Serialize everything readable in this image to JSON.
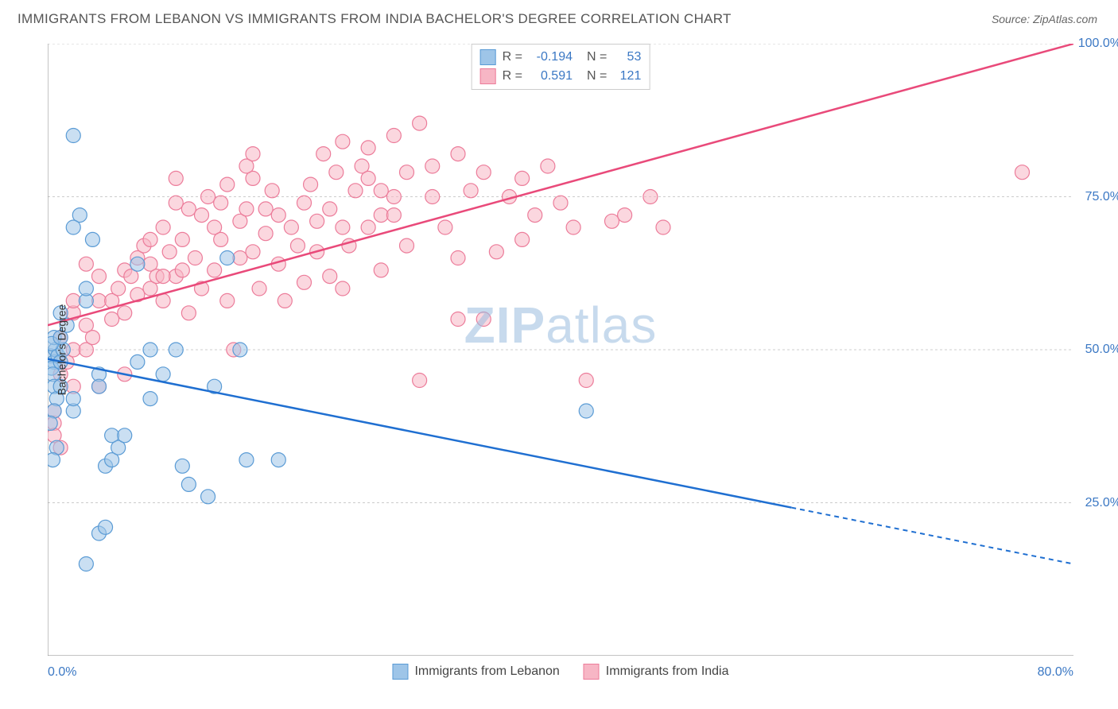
{
  "title": "IMMIGRANTS FROM LEBANON VS IMMIGRANTS FROM INDIA BACHELOR'S DEGREE CORRELATION CHART",
  "source": "Source: ZipAtlas.com",
  "ylabel": "Bachelor's Degree",
  "watermark_bold": "ZIP",
  "watermark_rest": "atlas",
  "chart": {
    "type": "scatter",
    "xlim": [
      0,
      80
    ],
    "ylim": [
      0,
      100
    ],
    "xtick_labels": {
      "min": "0.0%",
      "max": "80.0%"
    },
    "ytick_labels": [
      "25.0%",
      "50.0%",
      "75.0%",
      "100.0%"
    ],
    "ytick_values": [
      25,
      50,
      75,
      100
    ],
    "xtick_minor": [
      0,
      10,
      20,
      30,
      40,
      50,
      60,
      70,
      80
    ],
    "grid_color": "#cccccc",
    "axis_color": "#888888",
    "tick_color": "#888888",
    "background": "#ffffff",
    "marker_radius": 9,
    "series": [
      {
        "name": "Immigrants from Lebanon",
        "color_fill": "#9ec5e8",
        "color_stroke": "#5a9bd5",
        "fill_opacity": 0.55,
        "r": -0.194,
        "n": 53,
        "regression": {
          "x0": 0,
          "y0": 48.5,
          "x1": 80,
          "y1": 15,
          "solid_until_x": 58
        },
        "line_color": "#1f6fd1",
        "points": [
          [
            0.2,
            49
          ],
          [
            0.5,
            48
          ],
          [
            0.6,
            50
          ],
          [
            0.3,
            47
          ],
          [
            0.8,
            49
          ],
          [
            0.5,
            52
          ],
          [
            1,
            48
          ],
          [
            1.2,
            50
          ],
          [
            0.4,
            46
          ],
          [
            0.3,
            51
          ],
          [
            0.5,
            44
          ],
          [
            0.7,
            42
          ],
          [
            1,
            56
          ],
          [
            2,
            85
          ],
          [
            2.5,
            72
          ],
          [
            2,
            70
          ],
          [
            3,
            58
          ],
          [
            3,
            60
          ],
          [
            3.5,
            68
          ],
          [
            4,
            46
          ],
          [
            4,
            44
          ],
          [
            4.5,
            31
          ],
          [
            5,
            36
          ],
          [
            5,
            32
          ],
          [
            5.5,
            34
          ],
          [
            3,
            15
          ],
          [
            4,
            20
          ],
          [
            4.5,
            21
          ],
          [
            6,
            36
          ],
          [
            7,
            48
          ],
          [
            7,
            64
          ],
          [
            8,
            50
          ],
          [
            8,
            42
          ],
          [
            9,
            46
          ],
          [
            10.5,
            31
          ],
          [
            10,
            50
          ],
          [
            11,
            28
          ],
          [
            12.5,
            26
          ],
          [
            13,
            44
          ],
          [
            14,
            65
          ],
          [
            15,
            50
          ],
          [
            15.5,
            32
          ],
          [
            18,
            32
          ],
          [
            2,
            40
          ],
          [
            2,
            42
          ],
          [
            1,
            52
          ],
          [
            1.5,
            54
          ],
          [
            42,
            40
          ],
          [
            1,
            44
          ],
          [
            0.5,
            40
          ],
          [
            0.2,
            38
          ],
          [
            0.7,
            34
          ],
          [
            0.4,
            32
          ]
        ]
      },
      {
        "name": "Immigrants from India",
        "color_fill": "#f7b6c5",
        "color_stroke": "#ec7c9a",
        "fill_opacity": 0.55,
        "r": 0.591,
        "n": 121,
        "regression": {
          "x0": 0,
          "y0": 54,
          "x1": 80,
          "y1": 100,
          "solid_until_x": 80
        },
        "line_color": "#e94a7a",
        "points": [
          [
            0.5,
            38
          ],
          [
            0.5,
            40
          ],
          [
            0.5,
            36
          ],
          [
            1,
            34
          ],
          [
            1.5,
            48
          ],
          [
            2,
            50
          ],
          [
            2,
            56
          ],
          [
            3,
            54
          ],
          [
            3,
            50
          ],
          [
            3.5,
            52
          ],
          [
            4,
            58
          ],
          [
            4,
            62
          ],
          [
            5,
            55
          ],
          [
            5,
            58
          ],
          [
            5.5,
            60
          ],
          [
            6,
            63
          ],
          [
            6,
            56
          ],
          [
            6.5,
            62
          ],
          [
            7,
            65
          ],
          [
            7,
            59
          ],
          [
            7.5,
            67
          ],
          [
            8,
            60
          ],
          [
            8,
            64
          ],
          [
            8.5,
            62
          ],
          [
            9,
            58
          ],
          [
            9,
            70
          ],
          [
            9.5,
            66
          ],
          [
            10,
            62
          ],
          [
            10,
            74
          ],
          [
            10.5,
            63
          ],
          [
            10.5,
            68
          ],
          [
            11,
            56
          ],
          [
            11,
            73
          ],
          [
            11.5,
            65
          ],
          [
            12,
            60
          ],
          [
            12,
            72
          ],
          [
            12.5,
            75
          ],
          [
            13,
            63
          ],
          [
            13,
            70
          ],
          [
            13.5,
            74
          ],
          [
            13.5,
            68
          ],
          [
            14,
            77
          ],
          [
            14,
            58
          ],
          [
            14.5,
            50
          ],
          [
            15,
            71
          ],
          [
            15,
            65
          ],
          [
            15.5,
            73
          ],
          [
            16,
            66
          ],
          [
            16,
            78
          ],
          [
            16.5,
            60
          ],
          [
            17,
            73
          ],
          [
            17,
            69
          ],
          [
            17.5,
            76
          ],
          [
            18,
            64
          ],
          [
            18,
            72
          ],
          [
            18.5,
            58
          ],
          [
            19,
            70
          ],
          [
            19.5,
            67
          ],
          [
            20,
            74
          ],
          [
            20,
            61
          ],
          [
            20.5,
            77
          ],
          [
            21,
            71
          ],
          [
            21,
            66
          ],
          [
            21.5,
            82
          ],
          [
            22,
            73
          ],
          [
            22,
            62
          ],
          [
            22.5,
            79
          ],
          [
            23,
            70
          ],
          [
            23,
            84
          ],
          [
            23.5,
            67
          ],
          [
            24,
            76
          ],
          [
            24.5,
            80
          ],
          [
            25,
            70
          ],
          [
            25,
            83
          ],
          [
            26,
            72
          ],
          [
            26,
            63
          ],
          [
            27,
            85
          ],
          [
            27,
            75
          ],
          [
            28,
            67
          ],
          [
            28,
            79
          ],
          [
            29,
            87
          ],
          [
            29,
            45
          ],
          [
            30,
            75
          ],
          [
            30,
            80
          ],
          [
            31,
            70
          ],
          [
            32,
            82
          ],
          [
            32,
            65
          ],
          [
            33,
            76
          ],
          [
            34,
            79
          ],
          [
            35,
            66
          ],
          [
            36,
            75
          ],
          [
            37,
            68
          ],
          [
            37,
            78
          ],
          [
            38,
            72
          ],
          [
            39,
            80
          ],
          [
            40,
            74
          ],
          [
            41,
            70
          ],
          [
            42,
            45
          ],
          [
            44,
            71
          ],
          [
            45,
            72
          ],
          [
            47,
            75
          ],
          [
            48,
            70
          ],
          [
            76,
            79
          ],
          [
            32,
            55
          ],
          [
            34,
            55
          ],
          [
            15.5,
            80
          ],
          [
            16,
            82
          ],
          [
            10,
            78
          ],
          [
            3,
            64
          ],
          [
            4,
            44
          ],
          [
            2,
            44
          ],
          [
            6,
            46
          ],
          [
            2,
            58
          ],
          [
            1,
            46
          ],
          [
            23,
            60
          ],
          [
            25,
            78
          ],
          [
            26,
            76
          ],
          [
            27,
            72
          ],
          [
            8,
            68
          ],
          [
            9,
            62
          ],
          [
            1,
            52
          ]
        ]
      }
    ]
  },
  "legend": {
    "series1_label": "Immigrants from Lebanon",
    "series2_label": "Immigrants from India"
  },
  "stats_labels": {
    "r": "R =",
    "n": "N ="
  }
}
